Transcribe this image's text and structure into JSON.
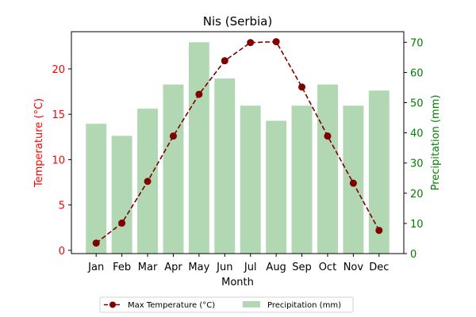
{
  "chart_data": {
    "type": "bar",
    "title": "Nis (Serbia)",
    "xlabel": "Month",
    "ylabel_left": "Temperature (°C)",
    "ylabel_right": "Precipitation (mm)",
    "categories": [
      "Jan",
      "Feb",
      "Mar",
      "Apr",
      "May",
      "Jun",
      "Jul",
      "Aug",
      "Sep",
      "Oct",
      "Nov",
      "Dec"
    ],
    "series": [
      {
        "name": "Max Temperature (°C)",
        "type": "line",
        "axis": "left",
        "color": "#800000",
        "values": [
          0.8,
          3.0,
          7.6,
          12.6,
          17.2,
          20.9,
          22.9,
          23.0,
          18.0,
          12.6,
          7.4,
          2.2
        ]
      },
      {
        "name": "Precipitation (mm)",
        "type": "bar",
        "axis": "right",
        "color": "#b1d8b3",
        "values": [
          43,
          39,
          48,
          56,
          70,
          58,
          49,
          44,
          49,
          56,
          49,
          54
        ]
      }
    ],
    "ylim_left": [
      -0.36,
      24.1
    ],
    "ylim_right": [
      0,
      73.5
    ],
    "yticks_left": [
      "0",
      "5",
      "10",
      "15",
      "20"
    ],
    "yticks_right": [
      "0",
      "10",
      "20",
      "30",
      "40",
      "50",
      "60",
      "70"
    ],
    "left_axis_color": "#ff0000",
    "right_axis_color": "#008000",
    "legend_position": "bottom-center",
    "grid": false
  }
}
